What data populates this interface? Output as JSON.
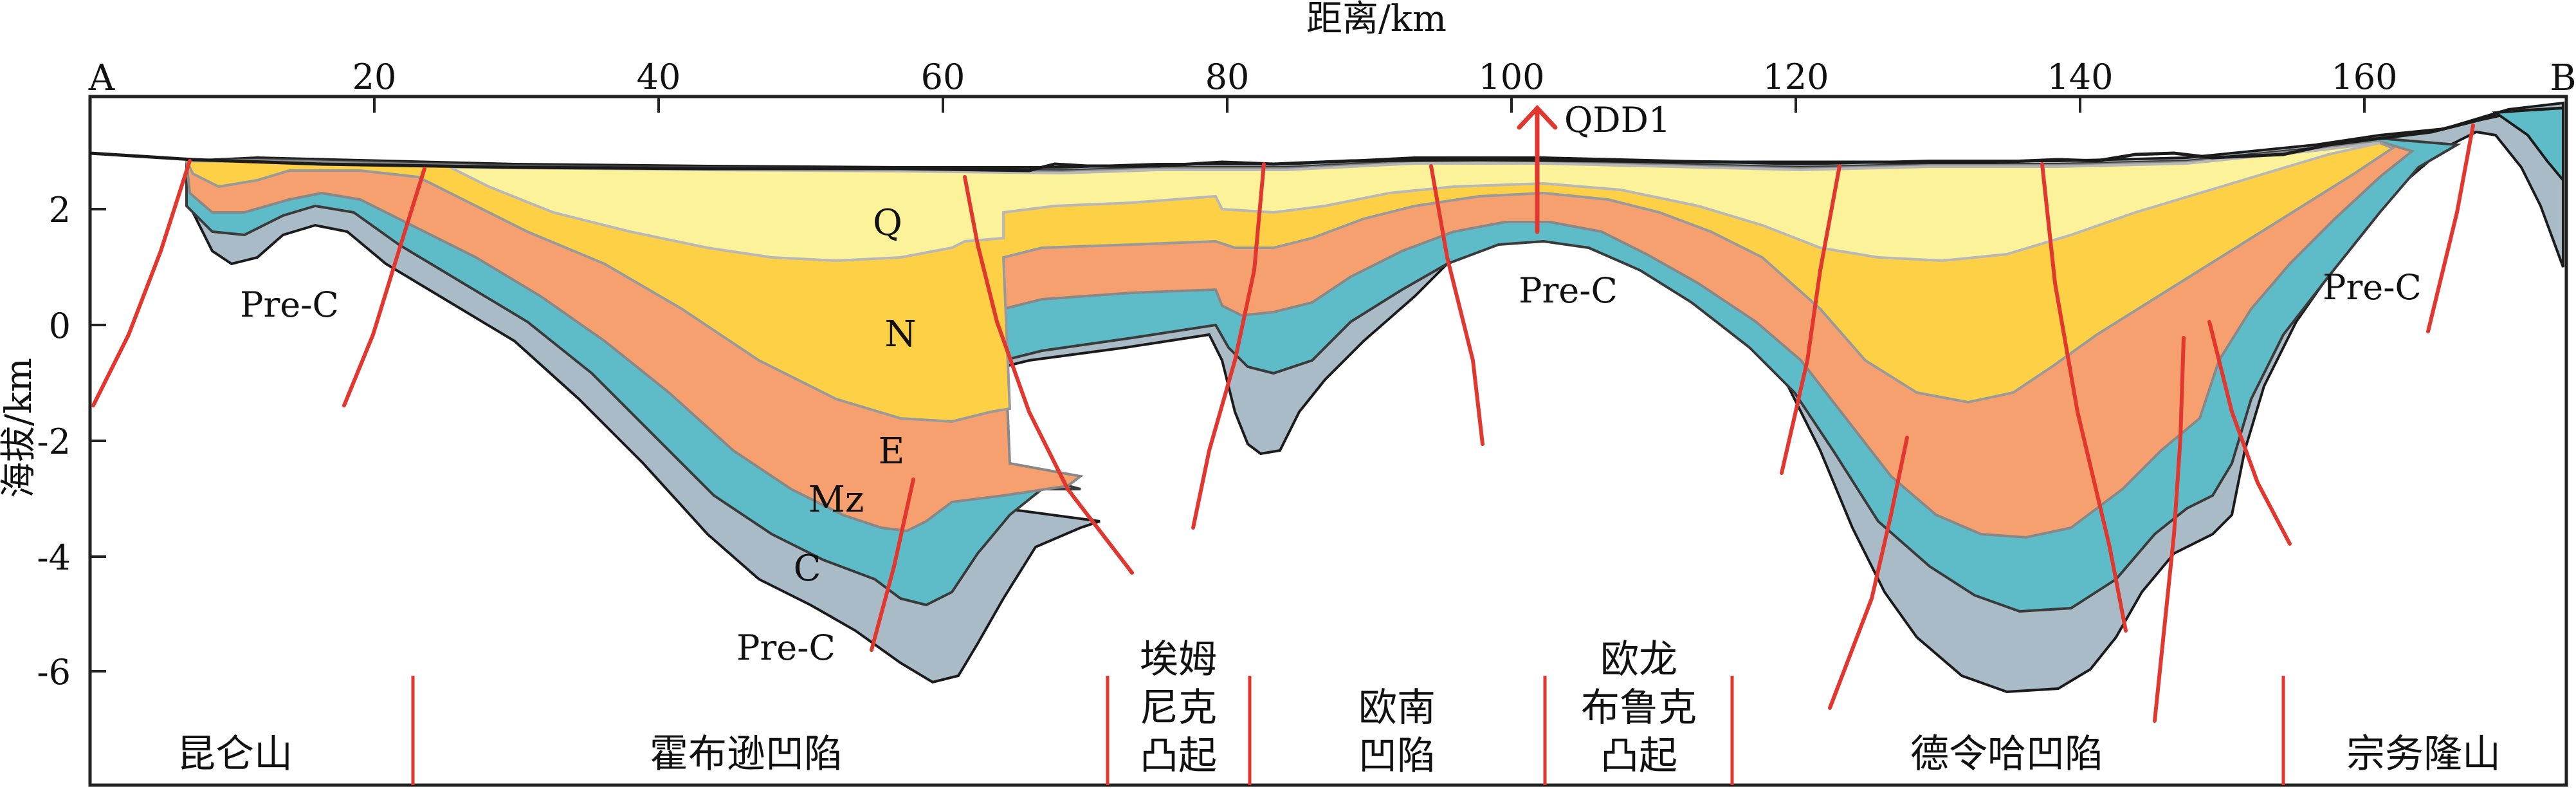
{
  "figure": {
    "x_axis_title": "距离/km",
    "y_axis_title": "海拔/km",
    "x_ticks": [
      "20",
      "40",
      "60",
      "80",
      "100",
      "120",
      "140",
      "160"
    ],
    "y_ticks": [
      "2",
      "0",
      "-2",
      "-4",
      "-6"
    ],
    "end_left": "A",
    "end_right": "B",
    "well": "QDD1"
  },
  "layers": {
    "q": "Q",
    "n": "N",
    "e": "E",
    "mz": "Mz",
    "c": "C",
    "pre_c": "Pre-C"
  },
  "units": {
    "u1": "昆仑山",
    "u2": "霍布逊凹陷",
    "u3_l1": "埃姆",
    "u3_l2": "尼克",
    "u3_l3": "凸起",
    "u4_l1": "欧南",
    "u4_l2": "凹陷",
    "u5_l1": "欧龙",
    "u5_l2": "布鲁克",
    "u5_l3": "凸起",
    "u6": "德令哈凹陷",
    "u7": "宗务隆山"
  },
  "colors": {
    "q": "#FBF29A",
    "n": "#FDD045",
    "e": "#F5A06E",
    "mz": "#5EBCC9",
    "c": "#A9BBC7",
    "fault": "#E2372E",
    "border": "#222222"
  }
}
